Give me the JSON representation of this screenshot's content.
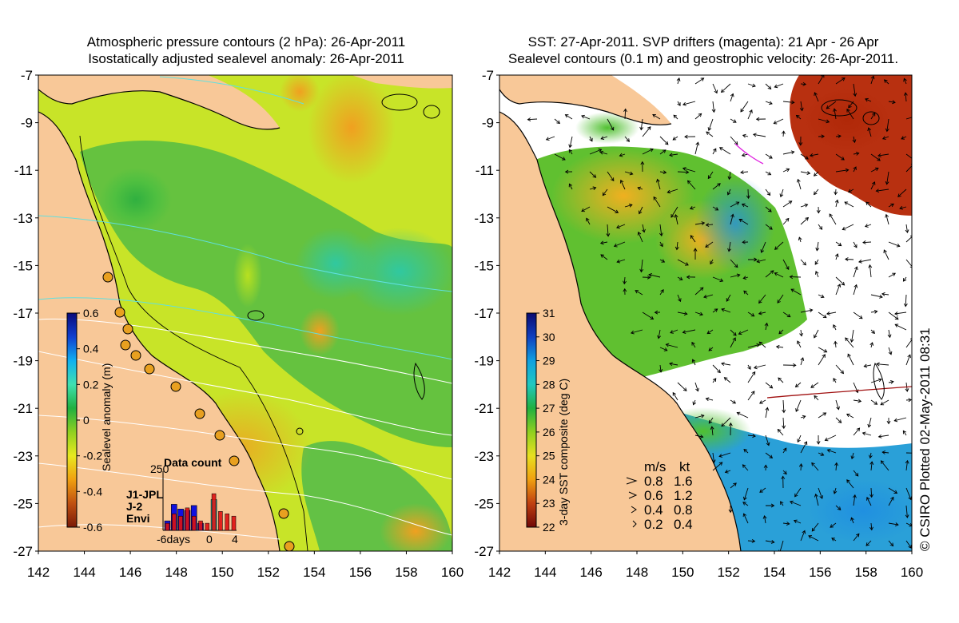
{
  "left_panel": {
    "title_line1": "Atmospheric pressure contours (2 hPa): 26-Apr-2011",
    "title_line2": "Isostatically adjusted sealevel anomaly: 26-Apr-2011",
    "colorbar": {
      "label": "Sealevel anomaly (m)",
      "ticks": [
        "0.6",
        "0.4",
        "0.2",
        "0",
        "-0.2",
        "-0.4",
        "-0.6"
      ],
      "range": [
        -0.6,
        0.6
      ],
      "colors": [
        "#0a0a7a",
        "#1040d0",
        "#10b0f0",
        "#40e0b0",
        "#20b040",
        "#90d020",
        "#e8e820",
        "#f0a010",
        "#c05010",
        "#7a1a08"
      ]
    },
    "inset": {
      "title": "Data count",
      "ymax_label": "250",
      "xlabel_left": "-6days",
      "xlabel_mid": "0",
      "xlabel_right": "4",
      "legend": [
        {
          "name": "J1-JPL",
          "color": "#1010e0"
        },
        {
          "name": "J-2",
          "color": "#e01010"
        },
        {
          "name": "Envi",
          "color": "#20e8e0"
        }
      ],
      "bars": [
        {
          "day": -6,
          "J1": 40,
          "J2": 30,
          "Envi": 0
        },
        {
          "day": -5,
          "J1": 110,
          "J2": 70,
          "Envi": 0
        },
        {
          "day": -4,
          "J1": 90,
          "J2": 60,
          "Envi": 0
        },
        {
          "day": -3,
          "J1": 85,
          "J2": 95,
          "Envi": 0
        },
        {
          "day": -2,
          "J1": 105,
          "J2": 60,
          "Envi": 0
        },
        {
          "day": -1,
          "J1": 30,
          "J2": 40,
          "Envi": 0
        },
        {
          "day": 0,
          "J1": 0,
          "J2": 30,
          "Envi": 0
        },
        {
          "day": 1,
          "J1": 0,
          "J2": 155,
          "Envi": 130
        },
        {
          "day": 2,
          "J1": 0,
          "J2": 80,
          "Envi": 0
        },
        {
          "day": 3,
          "J1": 0,
          "J2": 70,
          "Envi": 0
        },
        {
          "day": 4,
          "J1": 0,
          "J2": 60,
          "Envi": 0
        }
      ]
    }
  },
  "right_panel": {
    "title_line1": "SST: 27-Apr-2011. SVP drifters (magenta): 21 Apr - 26 Apr",
    "title_line2": "Sealevel contours (0.1 m) and geostrophic velocity: 26-Apr-2011.",
    "colorbar": {
      "label": "3-day SST composite (deg C)",
      "ticks": [
        "31",
        "30",
        "29",
        "28",
        "27",
        "26",
        "25",
        "24",
        "23",
        "22"
      ],
      "range": [
        22,
        31
      ],
      "colors": [
        "#0a0a70",
        "#1040c0",
        "#10a0e0",
        "#20c8c0",
        "#20b040",
        "#90d020",
        "#e8e020",
        "#f0a010",
        "#c04010",
        "#700808"
      ]
    },
    "velocity_legend": {
      "header_ms": "m/s",
      "header_kt": "kt",
      "rows": [
        {
          "ms": "0.8",
          "kt": "1.6"
        },
        {
          "ms": "0.6",
          "kt": "1.2"
        },
        {
          "ms": "0.4",
          "kt": "0.8"
        },
        {
          "ms": "0.2",
          "kt": "0.4"
        }
      ]
    },
    "credit": "© CSIRO Plotted 02-May-2011 08:31"
  },
  "axes": {
    "x_ticks": [
      "142",
      "144",
      "146",
      "148",
      "150",
      "152",
      "154",
      "156",
      "158",
      "160"
    ],
    "y_ticks": [
      "-7",
      "-9",
      "-11",
      "-13",
      "-15",
      "-17",
      "-19",
      "-21",
      "-23",
      "-25",
      "-27"
    ],
    "lon_range": [
      142,
      160
    ],
    "lat_range": [
      -27,
      -7
    ]
  },
  "colors": {
    "land": "#f8c898",
    "coast": "#000000",
    "contour_white": "#ffffff",
    "contour_cyan": "#60e0e0"
  }
}
